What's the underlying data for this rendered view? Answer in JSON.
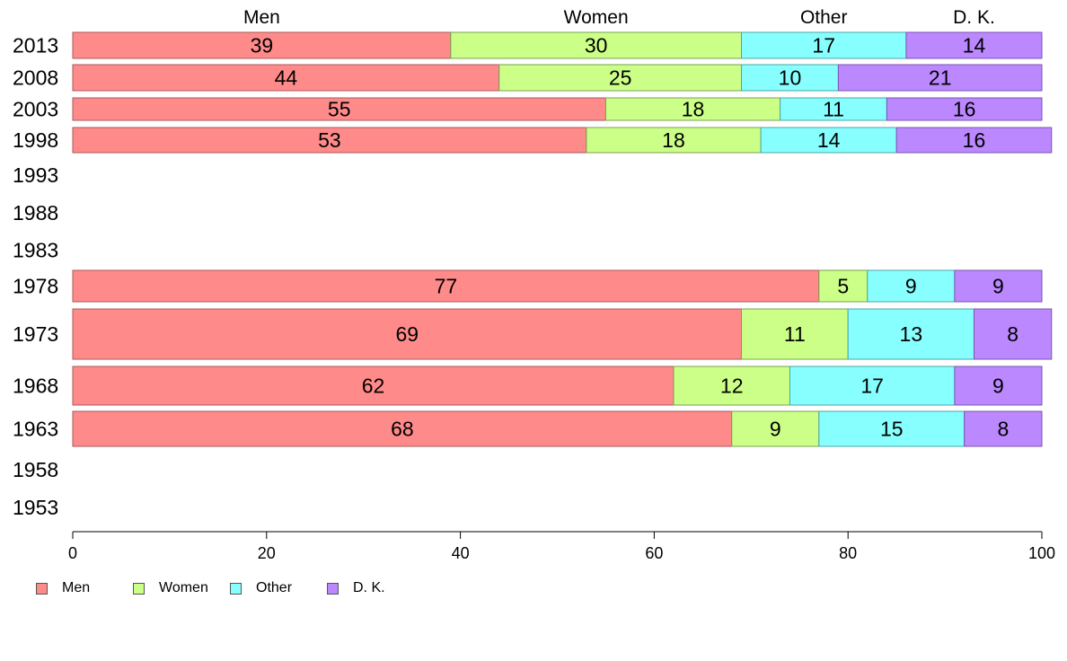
{
  "chart_data": {
    "type": "bar",
    "orientation": "horizontal",
    "stacked": true,
    "title": "",
    "xlabel": "",
    "ylabel": "",
    "xlim": [
      0,
      100
    ],
    "x_ticks": [
      "0",
      "20",
      "40",
      "60",
      "80",
      "100"
    ],
    "grid": false,
    "legend_position": "bottom-left",
    "column_headers": [
      "Men",
      "Women",
      "Other",
      "D. K."
    ],
    "categories": [
      "2013",
      "2008",
      "2003",
      "1998",
      "1993",
      "1988",
      "1983",
      "1978",
      "1973",
      "1968",
      "1963",
      "1958",
      "1953"
    ],
    "series": [
      {
        "name": "Men",
        "color": "#ff8a8a",
        "values": [
          39,
          44,
          55,
          53,
          null,
          null,
          null,
          77,
          69,
          62,
          68,
          null,
          null
        ]
      },
      {
        "name": "Women",
        "color": "#ccff88",
        "values": [
          30,
          25,
          18,
          18,
          null,
          null,
          null,
          5,
          11,
          12,
          9,
          null,
          null
        ]
      },
      {
        "name": "Other",
        "color": "#88ffff",
        "values": [
          17,
          10,
          11,
          14,
          null,
          null,
          null,
          9,
          13,
          17,
          15,
          null,
          null
        ]
      },
      {
        "name": "D. K.",
        "color": "#bb88ff",
        "values": [
          14,
          21,
          16,
          16,
          null,
          null,
          null,
          9,
          8,
          9,
          8,
          null,
          null
        ]
      }
    ]
  }
}
